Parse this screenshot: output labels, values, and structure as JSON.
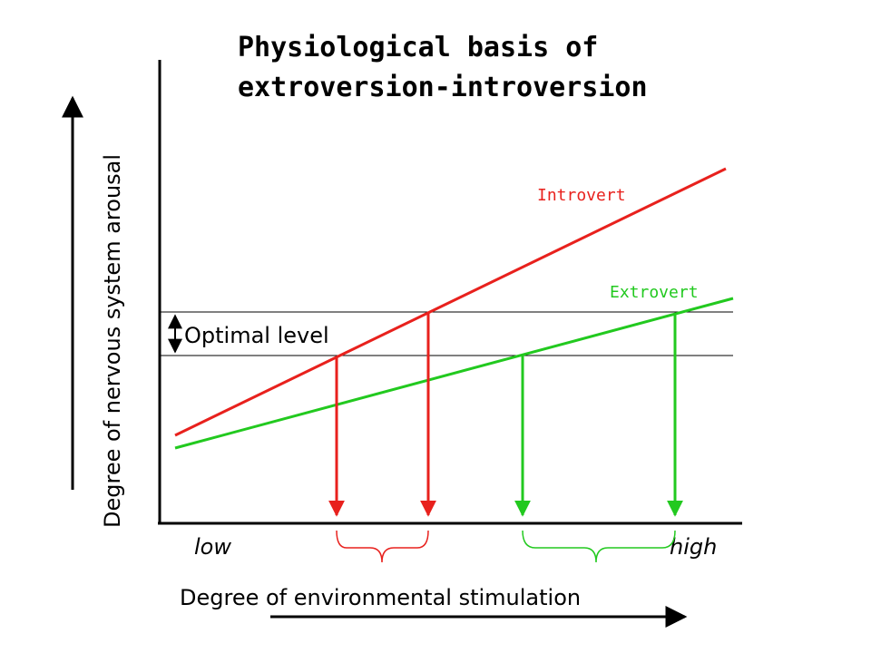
{
  "title": {
    "line1": "Physiological basis of",
    "line2": "extroversion-introversion"
  },
  "axes": {
    "y_label": "Degree of nervous system arousal",
    "x_label": "Degree of environmental stimulation",
    "x_low": "low",
    "x_high": "high"
  },
  "series": [
    {
      "name": "Introvert",
      "color": "#e8211d"
    },
    {
      "name": "Extrovert",
      "color": "#22c91f"
    }
  ],
  "optimal_level_label": "Optimal level",
  "colors": {
    "axis": "#000000",
    "introvert": "#e8211d",
    "extrovert": "#22c91f"
  }
}
